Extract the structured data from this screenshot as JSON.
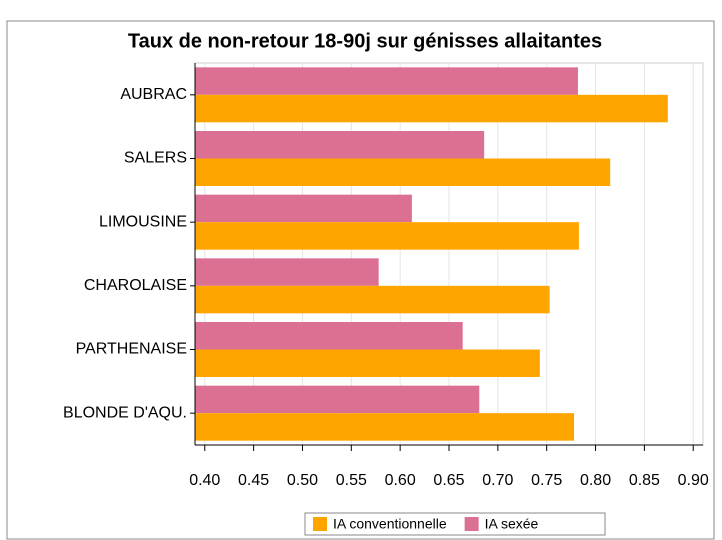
{
  "chart_data": {
    "type": "bar",
    "orientation": "horizontal",
    "title": "Taux de non-retour 18-90j sur génisses allaitantes",
    "categories": [
      "AUBRAC",
      "SALERS",
      "LIMOUSINE",
      "CHAROLAISE",
      "PARTHENAISE",
      "BLONDE D'AQU."
    ],
    "series": [
      {
        "name": "IA sexée",
        "color": "#db7093",
        "values": [
          0.782,
          0.686,
          0.612,
          0.578,
          0.664,
          0.681
        ]
      },
      {
        "name": "IA conventionnelle",
        "color": "#ffa500",
        "values": [
          0.874,
          0.815,
          0.783,
          0.753,
          0.743,
          0.778
        ]
      }
    ],
    "legend_order": [
      "IA conventionnelle",
      "IA sexée"
    ],
    "xlim": [
      0.39,
      0.91
    ],
    "xticks": [
      {
        "value": 0.4,
        "label": "0.40"
      },
      {
        "value": 0.45,
        "label": "0.45"
      },
      {
        "value": 0.5,
        "label": "0.50"
      },
      {
        "value": 0.55,
        "label": "0.55"
      },
      {
        "value": 0.6,
        "label": "0.60"
      },
      {
        "value": 0.65,
        "label": "0.65"
      },
      {
        "value": 0.7,
        "label": "0.70"
      },
      {
        "value": 0.75,
        "label": "0.75"
      },
      {
        "value": 0.8,
        "label": "0.80"
      },
      {
        "value": 0.85,
        "label": "0.85"
      },
      {
        "value": 0.9,
        "label": "0.90"
      }
    ],
    "grid": true,
    "legend": "bottom"
  }
}
